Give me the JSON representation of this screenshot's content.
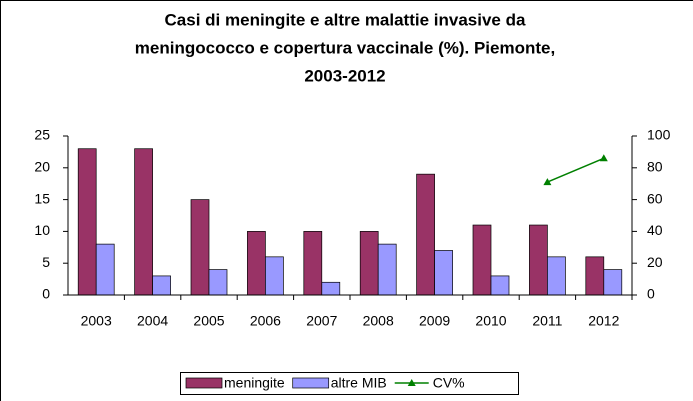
{
  "chart_data": {
    "type": "bar",
    "title": [
      "Casi di meningite e altre malattie invasive da",
      "meningococco e copertura vaccinale (%). Piemonte,",
      "2003-2012"
    ],
    "categories": [
      "2003",
      "2004",
      "2005",
      "2006",
      "2007",
      "2008",
      "2009",
      "2010",
      "2011",
      "2012"
    ],
    "series": [
      {
        "name": "meningite",
        "type": "bar",
        "color": "#993366",
        "values": [
          23,
          23,
          15,
          10,
          10,
          10,
          19,
          11,
          11,
          6
        ]
      },
      {
        "name": "altre MIB",
        "type": "bar",
        "color": "#9999ff",
        "values": [
          8,
          3,
          4,
          6,
          2,
          8,
          7,
          3,
          6,
          4
        ]
      },
      {
        "name": "CV%",
        "type": "line",
        "color": "#008000",
        "axis": "y2",
        "values": [
          null,
          null,
          null,
          null,
          null,
          null,
          null,
          null,
          71,
          86
        ]
      }
    ],
    "ylim": [
      0,
      25
    ],
    "yticks": [
      0,
      5,
      10,
      15,
      20,
      25
    ],
    "y2lim": [
      0,
      100
    ],
    "y2ticks": [
      0,
      20,
      40,
      60,
      80,
      100
    ],
    "legend": "bottom"
  }
}
